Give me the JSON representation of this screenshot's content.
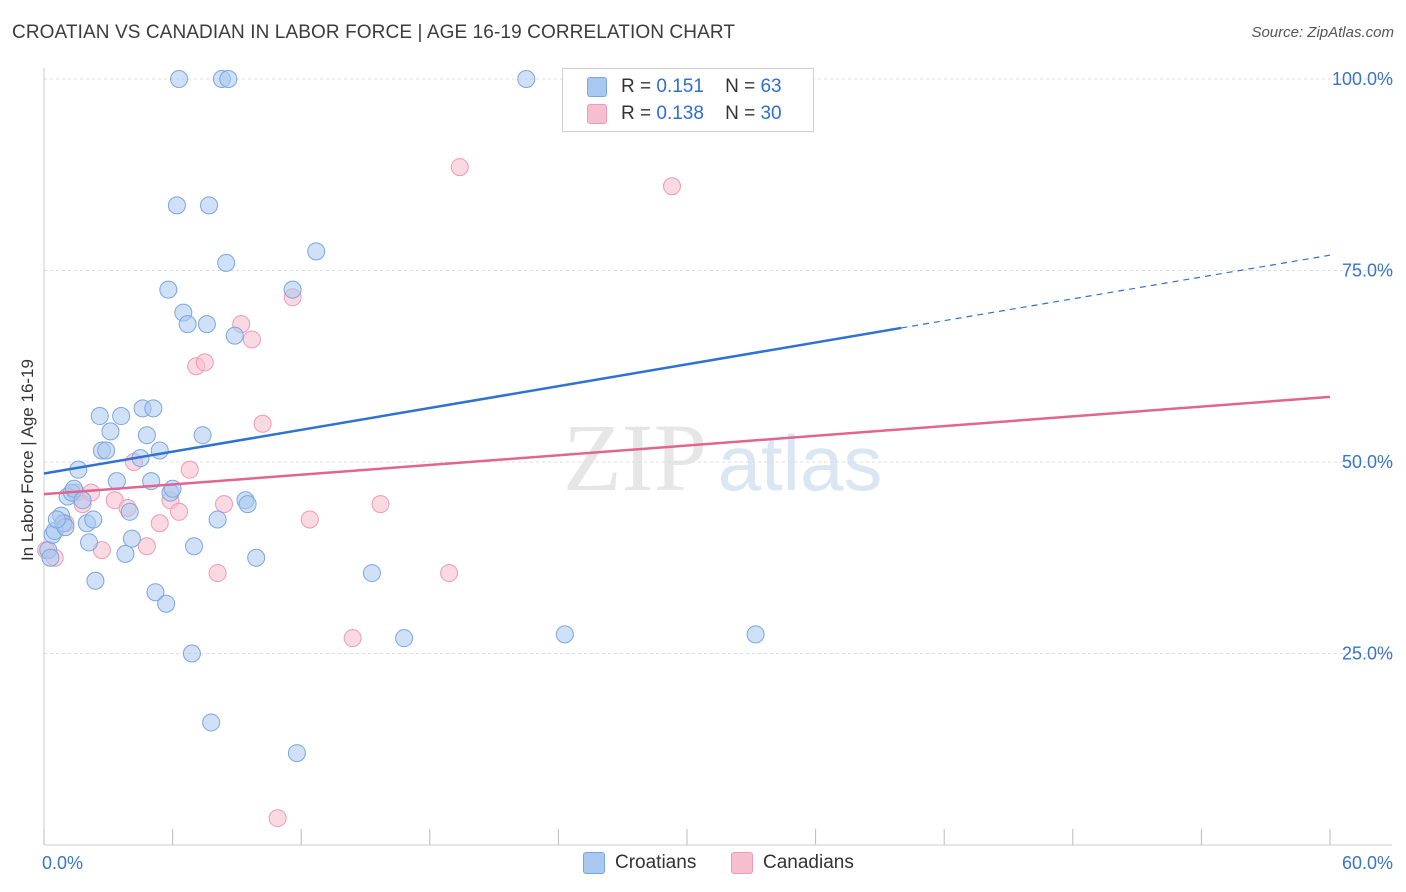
{
  "title": "CROATIAN VS CANADIAN IN LABOR FORCE | AGE 16-19 CORRELATION CHART",
  "source": "Source: ZipAtlas.com",
  "legend": {
    "r_label": "R =",
    "n_label": "N =",
    "series1": {
      "r": "0.151",
      "n": "63"
    },
    "series2": {
      "r": "0.138",
      "n": "30"
    }
  },
  "bottom_legend": {
    "series1": "Croatians",
    "series2": "Canadians"
  },
  "colors": {
    "croatians_fill": "#a9c8f0",
    "croatians_stroke": "#7aa6e0",
    "croatians_line": "#2f72d2",
    "canadians_fill": "#f6bfd0",
    "canadians_stroke": "#ef9ab5",
    "canadians_line": "#e06590",
    "tick_label": "#3a74c8"
  },
  "chart_data": {
    "type": "scatter",
    "title": "CROATIAN VS CANADIAN IN LABOR FORCE | AGE 16-19 CORRELATION CHART",
    "xlabel": "",
    "ylabel": "In Labor Force | Age 16-19",
    "xlim": [
      0,
      60
    ],
    "ylim": [
      0,
      105
    ],
    "x_tick_labels": [
      "0.0%",
      "60.0%"
    ],
    "y_ticks": [
      25,
      50,
      75,
      100
    ],
    "y_tick_labels": [
      "25.0%",
      "50.0%",
      "75.0%",
      "100.0%"
    ],
    "grid": true,
    "legend_position": "top-center",
    "series": [
      {
        "name": "Croatians",
        "r": 0.151,
        "n": 63,
        "trend": {
          "x0": 0,
          "y0": 48.5,
          "x1": 40,
          "y1": 67.5,
          "dashed_to_x": 60,
          "dashed_to_y": 77
        },
        "points": [
          [
            0.2,
            38.5
          ],
          [
            0.4,
            40.5
          ],
          [
            0.5,
            41
          ],
          [
            0.8,
            43
          ],
          [
            0.9,
            42
          ],
          [
            1.0,
            41.5
          ],
          [
            1.1,
            45.5
          ],
          [
            1.3,
            46
          ],
          [
            1.4,
            46.5
          ],
          [
            1.6,
            49
          ],
          [
            1.8,
            45
          ],
          [
            2.0,
            42
          ],
          [
            2.1,
            39.5
          ],
          [
            2.3,
            42.5
          ],
          [
            2.4,
            34.5
          ],
          [
            2.6,
            56
          ],
          [
            2.7,
            51.5
          ],
          [
            2.9,
            51.5
          ],
          [
            3.1,
            54
          ],
          [
            3.4,
            47.5
          ],
          [
            3.6,
            56
          ],
          [
            3.8,
            38
          ],
          [
            4.0,
            43.5
          ],
          [
            4.1,
            40
          ],
          [
            4.5,
            50.5
          ],
          [
            4.6,
            57
          ],
          [
            4.8,
            53.5
          ],
          [
            5.0,
            47.5
          ],
          [
            5.1,
            57
          ],
          [
            5.2,
            33
          ],
          [
            5.4,
            51.5
          ],
          [
            5.7,
            31.5
          ],
          [
            5.8,
            72.5
          ],
          [
            5.9,
            46
          ],
          [
            6.0,
            46.5
          ],
          [
            6.2,
            83.5
          ],
          [
            6.3,
            100
          ],
          [
            6.5,
            69.5
          ],
          [
            6.7,
            68
          ],
          [
            6.9,
            25
          ],
          [
            7.0,
            39
          ],
          [
            7.4,
            53.5
          ],
          [
            7.6,
            68
          ],
          [
            7.8,
            16
          ],
          [
            7.7,
            83.5
          ],
          [
            8.1,
            42.5
          ],
          [
            8.3,
            100
          ],
          [
            8.5,
            76
          ],
          [
            8.6,
            100
          ],
          [
            8.9,
            66.5
          ],
          [
            9.4,
            45
          ],
          [
            9.5,
            44.5
          ],
          [
            9.9,
            37.5
          ],
          [
            11.6,
            72.5
          ],
          [
            11.8,
            12
          ],
          [
            12.7,
            77.5
          ],
          [
            15.3,
            35.5
          ],
          [
            16.8,
            27
          ],
          [
            22.5,
            100
          ],
          [
            24.3,
            27.5
          ],
          [
            33.2,
            27.5
          ],
          [
            0.3,
            37.5
          ],
          [
            0.6,
            42.5
          ]
        ]
      },
      {
        "name": "Canadians",
        "r": 0.138,
        "n": 30,
        "trend": {
          "x0": 0,
          "y0": 45.8,
          "x1": 60,
          "y1": 58.5
        },
        "points": [
          [
            0.1,
            38.5
          ],
          [
            0.5,
            37.5
          ],
          [
            1.0,
            42
          ],
          [
            1.5,
            46
          ],
          [
            1.8,
            44.5
          ],
          [
            2.2,
            46
          ],
          [
            2.7,
            38.5
          ],
          [
            3.3,
            45
          ],
          [
            3.9,
            44
          ],
          [
            4.2,
            50
          ],
          [
            4.8,
            39
          ],
          [
            5.4,
            42
          ],
          [
            5.9,
            45
          ],
          [
            6.3,
            43.5
          ],
          [
            6.8,
            49
          ],
          [
            7.1,
            62.5
          ],
          [
            7.5,
            63
          ],
          [
            8.1,
            35.5
          ],
          [
            8.4,
            44.5
          ],
          [
            9.2,
            68
          ],
          [
            9.7,
            66
          ],
          [
            10.2,
            55
          ],
          [
            10.9,
            3.5
          ],
          [
            11.6,
            71.5
          ],
          [
            12.4,
            42.5
          ],
          [
            14.4,
            27
          ],
          [
            15.7,
            44.5
          ],
          [
            18.9,
            35.5
          ],
          [
            19.4,
            88.5
          ],
          [
            29.3,
            86
          ]
        ]
      }
    ]
  }
}
